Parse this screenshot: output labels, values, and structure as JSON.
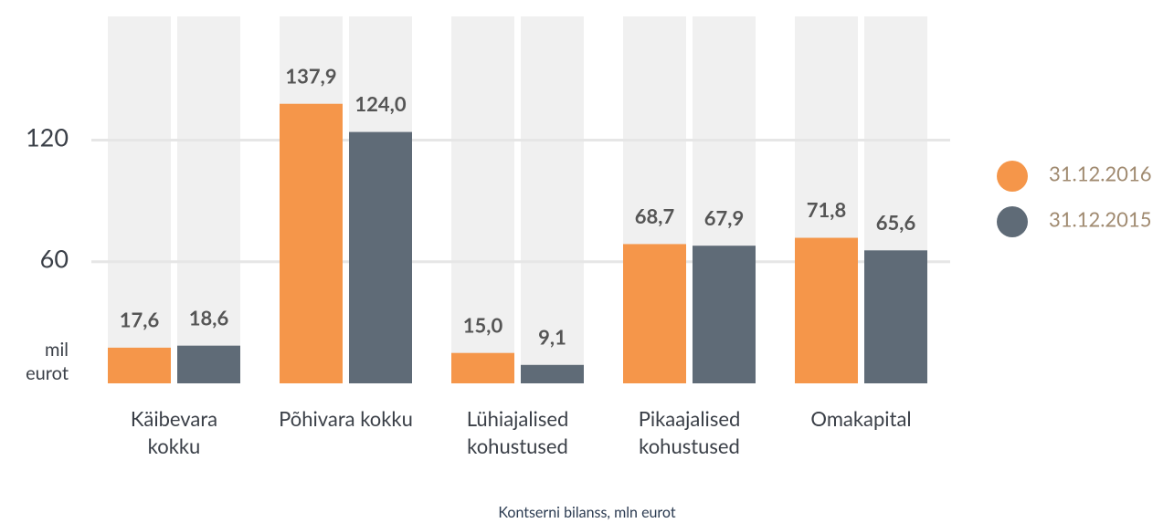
{
  "chart_data": {
    "type": "bar",
    "x_caption": "Kontserni bilanss, mln eurot",
    "y_label": "mil eurot",
    "categories": [
      "Käibevara kokku",
      "Põhivara kokku",
      "Lühiajalised kohustused",
      "Pikaajalised kohustused",
      "Omakapital"
    ],
    "series": [
      {
        "name": "31.12.2016",
        "color": "#f5964a",
        "values": [
          17.6,
          137.9,
          15.0,
          68.7,
          71.8
        ],
        "value_labels": [
          "17,6",
          "137,9",
          "15,0",
          "68,7",
          "71,8"
        ]
      },
      {
        "name": "31.12.2015",
        "color": "#5f6b77",
        "values": [
          18.6,
          124.0,
          9.1,
          67.9,
          65.6
        ],
        "value_labels": [
          "18,6",
          "124,0",
          "9,1",
          "67,9",
          "65,6"
        ]
      }
    ],
    "ylim": [
      0,
      181
    ],
    "yticks": [
      60,
      120
    ],
    "grid": true,
    "legend": "right"
  }
}
